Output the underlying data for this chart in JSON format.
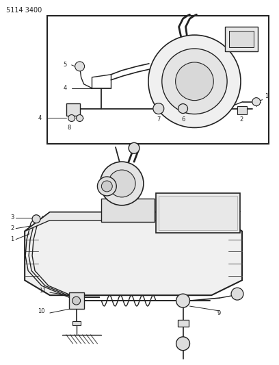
{
  "title_code": "5114 3400",
  "background_color": "#ffffff",
  "line_color": "#222222"
}
